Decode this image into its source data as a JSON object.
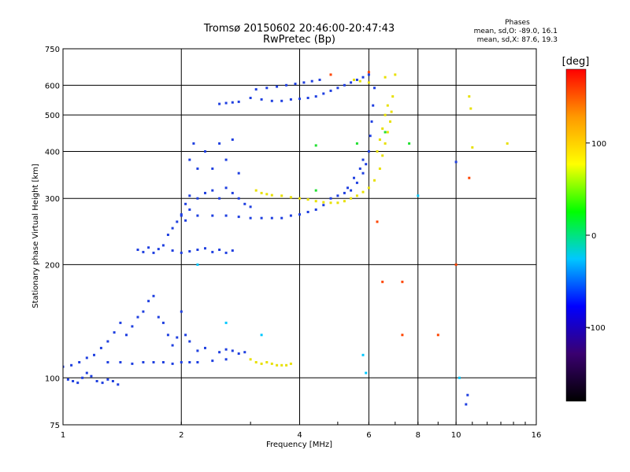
{
  "chart_data": {
    "type": "scatter",
    "title": "Tromsø 20150602 20:46:00-20:47:43",
    "subtitle": "RwPretec (Bp)",
    "xlabel": "Frequency [MHz]",
    "ylabel": "Stationary phase Virtual Height [km]",
    "x_scale": "log",
    "y_scale": "log",
    "xlim": [
      1,
      16
    ],
    "ylim": [
      75,
      750
    ],
    "x_ticks": [
      1,
      2,
      4,
      6,
      8,
      10,
      16
    ],
    "y_ticks": [
      75,
      100,
      200,
      300,
      400,
      500,
      600,
      750
    ],
    "grid": true,
    "info": {
      "heading": "Phases",
      "o_line": "mean, sd,O: -89.0, 16.1",
      "x_line": "mean, sd,X: 87.6, 19.3"
    },
    "colorbar": {
      "label": "[deg]",
      "range": [
        -180,
        180
      ],
      "ticks": [
        -100,
        0,
        100
      ],
      "tick_labels": [
        "-100",
        "0",
        "100"
      ],
      "colors": [
        "#000000",
        "#3a0070",
        "#0000ff",
        "#00c8ff",
        "#00ff00",
        "#ffff00",
        "#ff9900",
        "#ff0000"
      ]
    },
    "series": [
      {
        "mode": "O",
        "color": "#1f3fe0",
        "points": [
          [
            1.0,
            107
          ],
          [
            1.03,
            99
          ],
          [
            1.06,
            98
          ],
          [
            1.09,
            97
          ],
          [
            1.12,
            100
          ],
          [
            1.15,
            103
          ],
          [
            1.18,
            101
          ],
          [
            1.22,
            98
          ],
          [
            1.26,
            97
          ],
          [
            1.3,
            99
          ],
          [
            1.34,
            98
          ],
          [
            1.38,
            96
          ],
          [
            1.05,
            108
          ],
          [
            1.1,
            110
          ],
          [
            1.15,
            113
          ],
          [
            1.2,
            115
          ],
          [
            1.25,
            120
          ],
          [
            1.3,
            125
          ],
          [
            1.35,
            132
          ],
          [
            1.4,
            140
          ],
          [
            1.45,
            130
          ],
          [
            1.5,
            137
          ],
          [
            1.55,
            145
          ],
          [
            1.6,
            150
          ],
          [
            1.65,
            160
          ],
          [
            1.7,
            165
          ],
          [
            1.75,
            145
          ],
          [
            1.8,
            140
          ],
          [
            1.85,
            130
          ],
          [
            1.9,
            122
          ],
          [
            1.95,
            128
          ],
          [
            2.0,
            150
          ],
          [
            2.05,
            130
          ],
          [
            2.1,
            125
          ],
          [
            2.2,
            118
          ],
          [
            2.3,
            120
          ],
          [
            1.3,
            110
          ],
          [
            1.4,
            110
          ],
          [
            1.5,
            109
          ],
          [
            1.6,
            110
          ],
          [
            1.7,
            110
          ],
          [
            1.8,
            110
          ],
          [
            1.9,
            109
          ],
          [
            2.0,
            110
          ],
          [
            2.1,
            110
          ],
          [
            2.2,
            110
          ],
          [
            2.4,
            111
          ],
          [
            2.6,
            112
          ],
          [
            2.5,
            117
          ],
          [
            2.6,
            119
          ],
          [
            2.7,
            118
          ],
          [
            2.8,
            116
          ],
          [
            2.9,
            117
          ],
          [
            1.55,
            219
          ],
          [
            1.6,
            216
          ],
          [
            1.65,
            222
          ],
          [
            1.7,
            215
          ],
          [
            1.75,
            220
          ],
          [
            1.8,
            225
          ],
          [
            1.85,
            240
          ],
          [
            1.9,
            250
          ],
          [
            1.95,
            260
          ],
          [
            2.0,
            270
          ],
          [
            2.05,
            262
          ],
          [
            2.1,
            280
          ],
          [
            1.9,
            218
          ],
          [
            2.0,
            215
          ],
          [
            2.1,
            217
          ],
          [
            2.2,
            219
          ],
          [
            2.3,
            221
          ],
          [
            2.4,
            216
          ],
          [
            2.5,
            219
          ],
          [
            2.6,
            215
          ],
          [
            2.7,
            218
          ],
          [
            2.05,
            290
          ],
          [
            2.1,
            305
          ],
          [
            2.2,
            300
          ],
          [
            2.3,
            310
          ],
          [
            2.4,
            315
          ],
          [
            2.5,
            300
          ],
          [
            2.6,
            320
          ],
          [
            2.7,
            310
          ],
          [
            2.8,
            300
          ],
          [
            2.9,
            290
          ],
          [
            3.0,
            285
          ],
          [
            2.1,
            380
          ],
          [
            2.15,
            420
          ],
          [
            2.2,
            360
          ],
          [
            2.3,
            400
          ],
          [
            2.4,
            360
          ],
          [
            2.5,
            420
          ],
          [
            2.6,
            380
          ],
          [
            2.7,
            430
          ],
          [
            2.8,
            350
          ],
          [
            2.0,
            272
          ],
          [
            2.2,
            270
          ],
          [
            2.4,
            270
          ],
          [
            2.6,
            270
          ],
          [
            2.8,
            268
          ],
          [
            3.0,
            266
          ],
          [
            3.2,
            266
          ],
          [
            3.4,
            266
          ],
          [
            3.6,
            266
          ],
          [
            3.8,
            270
          ],
          [
            4.0,
            272
          ],
          [
            4.2,
            276
          ],
          [
            4.4,
            280
          ],
          [
            4.6,
            288
          ],
          [
            4.8,
            300
          ],
          [
            5.0,
            305
          ],
          [
            5.2,
            310
          ],
          [
            5.4,
            315
          ],
          [
            5.6,
            330
          ],
          [
            5.8,
            350
          ],
          [
            5.9,
            370
          ],
          [
            6.0,
            400
          ],
          [
            6.05,
            440
          ],
          [
            6.1,
            480
          ],
          [
            6.15,
            530
          ],
          [
            6.2,
            590
          ],
          [
            5.3,
            320
          ],
          [
            5.5,
            340
          ],
          [
            5.7,
            360
          ],
          [
            5.8,
            380
          ],
          [
            2.5,
            535
          ],
          [
            2.6,
            538
          ],
          [
            2.7,
            540
          ],
          [
            2.8,
            542
          ],
          [
            3.0,
            555
          ],
          [
            3.2,
            550
          ],
          [
            3.4,
            545
          ],
          [
            3.6,
            545
          ],
          [
            3.8,
            550
          ],
          [
            4.0,
            552
          ],
          [
            4.2,
            555
          ],
          [
            4.4,
            560
          ],
          [
            4.6,
            570
          ],
          [
            4.8,
            580
          ],
          [
            5.0,
            590
          ],
          [
            5.2,
            600
          ],
          [
            5.4,
            610
          ],
          [
            5.6,
            620
          ],
          [
            5.8,
            630
          ],
          [
            6.0,
            640
          ],
          [
            3.1,
            585
          ],
          [
            3.3,
            590
          ],
          [
            3.5,
            595
          ],
          [
            3.7,
            600
          ],
          [
            3.9,
            605
          ],
          [
            4.1,
            610
          ],
          [
            4.3,
            615
          ],
          [
            4.5,
            620
          ],
          [
            10.0,
            375
          ],
          [
            10.7,
            90
          ],
          [
            10.6,
            85
          ]
        ]
      },
      {
        "mode": "X",
        "color": "#e8e000",
        "points": [
          [
            3.0,
            112
          ],
          [
            3.1,
            110
          ],
          [
            3.2,
            109
          ],
          [
            3.3,
            110
          ],
          [
            3.4,
            109
          ],
          [
            3.5,
            108
          ],
          [
            3.6,
            108
          ],
          [
            3.7,
            108
          ],
          [
            3.8,
            109
          ],
          [
            3.1,
            315
          ],
          [
            3.2,
            310
          ],
          [
            3.3,
            308
          ],
          [
            3.4,
            306
          ],
          [
            3.6,
            305
          ],
          [
            3.8,
            302
          ],
          [
            4.0,
            300
          ],
          [
            4.2,
            298
          ],
          [
            4.4,
            295
          ],
          [
            4.6,
            293
          ],
          [
            4.8,
            292
          ],
          [
            5.0,
            292
          ],
          [
            5.2,
            295
          ],
          [
            5.4,
            300
          ],
          [
            5.6,
            305
          ],
          [
            5.8,
            312
          ],
          [
            6.0,
            320
          ],
          [
            6.2,
            335
          ],
          [
            6.4,
            360
          ],
          [
            6.5,
            390
          ],
          [
            6.6,
            420
          ],
          [
            6.7,
            450
          ],
          [
            6.8,
            480
          ],
          [
            6.85,
            510
          ],
          [
            6.9,
            560
          ],
          [
            6.3,
            400
          ],
          [
            6.4,
            430
          ],
          [
            6.5,
            460
          ],
          [
            6.6,
            500
          ],
          [
            6.7,
            530
          ],
          [
            5.5,
            620
          ],
          [
            5.7,
            615
          ],
          [
            6.0,
            610
          ],
          [
            6.6,
            630
          ],
          [
            7.0,
            640
          ],
          [
            10.8,
            560
          ],
          [
            10.9,
            520
          ],
          [
            11.0,
            410
          ],
          [
            13.5,
            420
          ]
        ]
      },
      {
        "mode": "other",
        "color": "#ff4400",
        "points": [
          [
            6.0,
            650
          ],
          [
            4.8,
            640
          ],
          [
            6.5,
            180
          ],
          [
            7.3,
            180
          ],
          [
            7.3,
            130
          ],
          [
            9.0,
            130
          ],
          [
            10.8,
            340
          ],
          [
            10.0,
            200
          ],
          [
            6.3,
            260
          ]
        ]
      },
      {
        "mode": "other",
        "color": "#20e030",
        "points": [
          [
            4.4,
            415
          ],
          [
            5.6,
            420
          ],
          [
            6.6,
            450
          ],
          [
            7.6,
            420
          ],
          [
            4.4,
            315
          ]
        ]
      },
      {
        "mode": "other",
        "color": "#00c8ff",
        "points": [
          [
            2.2,
            200
          ],
          [
            2.6,
            140
          ],
          [
            3.2,
            130
          ],
          [
            5.8,
            115
          ],
          [
            5.9,
            103
          ],
          [
            8.0,
            305
          ],
          [
            10.2,
            100
          ]
        ]
      }
    ]
  }
}
